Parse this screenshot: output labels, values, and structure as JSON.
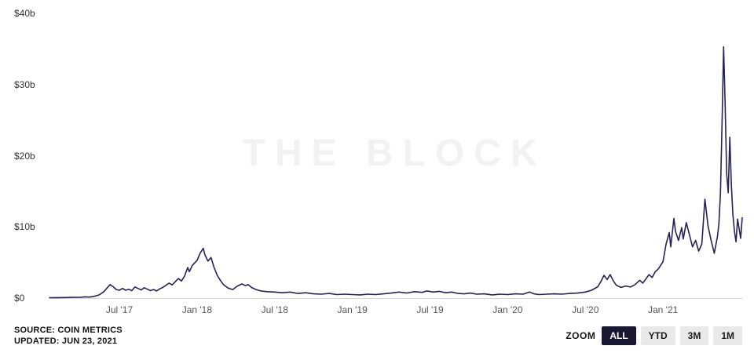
{
  "watermark": "THE BLOCK",
  "colors": {
    "line": "#262254",
    "axis": "#d6d6d6",
    "active_button_bg": "#191731",
    "inactive_button_bg": "#e9e9e9"
  },
  "footer": {
    "source": "SOURCE: COIN METRICS",
    "updated": "UPDATED: JUN 23, 2021",
    "zoom_label": "ZOOM",
    "zoom_options": [
      {
        "label": "ALL",
        "active": true
      },
      {
        "label": "YTD",
        "active": false
      },
      {
        "label": "3M",
        "active": false
      },
      {
        "label": "1M",
        "active": false
      }
    ]
  },
  "chart_data": {
    "type": "line",
    "title": "",
    "xlabel": "",
    "ylabel": "",
    "x_domain": [
      2017.05,
      2021.51
    ],
    "y_domain": [
      0,
      40
    ],
    "grid": false,
    "x_ticks": [
      {
        "value": 2017.5,
        "label": "Jul '17"
      },
      {
        "value": 2018.0,
        "label": "Jan '18"
      },
      {
        "value": 2018.5,
        "label": "Jul '18"
      },
      {
        "value": 2019.0,
        "label": "Jan '19"
      },
      {
        "value": 2019.5,
        "label": "Jul '19"
      },
      {
        "value": 2020.0,
        "label": "Jan '20"
      },
      {
        "value": 2020.5,
        "label": "Jul '20"
      },
      {
        "value": 2021.0,
        "label": "Jan '21"
      }
    ],
    "y_ticks": [
      {
        "value": 0,
        "label": "$0"
      },
      {
        "value": 10,
        "label": "$10b"
      },
      {
        "value": 20,
        "label": "$20b"
      },
      {
        "value": 30,
        "label": "$30b"
      },
      {
        "value": 40,
        "label": "$40b"
      }
    ],
    "series": [
      {
        "name": "value-usd-billions",
        "color": "#262254",
        "points": [
          [
            2017.05,
            0.05
          ],
          [
            2017.1,
            0.07
          ],
          [
            2017.15,
            0.08
          ],
          [
            2017.2,
            0.1
          ],
          [
            2017.25,
            0.12
          ],
          [
            2017.28,
            0.18
          ],
          [
            2017.31,
            0.14
          ],
          [
            2017.34,
            0.25
          ],
          [
            2017.37,
            0.45
          ],
          [
            2017.4,
            0.9
          ],
          [
            2017.42,
            1.4
          ],
          [
            2017.44,
            1.9
          ],
          [
            2017.46,
            1.6
          ],
          [
            2017.48,
            1.2
          ],
          [
            2017.5,
            1.1
          ],
          [
            2017.52,
            1.35
          ],
          [
            2017.54,
            1.1
          ],
          [
            2017.56,
            1.25
          ],
          [
            2017.58,
            1.05
          ],
          [
            2017.6,
            1.55
          ],
          [
            2017.62,
            1.35
          ],
          [
            2017.64,
            1.15
          ],
          [
            2017.66,
            1.45
          ],
          [
            2017.68,
            1.25
          ],
          [
            2017.7,
            1.05
          ],
          [
            2017.72,
            1.2
          ],
          [
            2017.74,
            1.0
          ],
          [
            2017.76,
            1.3
          ],
          [
            2017.78,
            1.5
          ],
          [
            2017.8,
            1.8
          ],
          [
            2017.82,
            2.1
          ],
          [
            2017.84,
            1.85
          ],
          [
            2017.86,
            2.3
          ],
          [
            2017.88,
            2.75
          ],
          [
            2017.9,
            2.4
          ],
          [
            2017.92,
            3.1
          ],
          [
            2017.94,
            4.3
          ],
          [
            2017.95,
            3.7
          ],
          [
            2017.97,
            4.6
          ],
          [
            2018.0,
            5.3
          ],
          [
            2018.02,
            6.3
          ],
          [
            2018.04,
            7.0
          ],
          [
            2018.05,
            6.1
          ],
          [
            2018.07,
            5.2
          ],
          [
            2018.09,
            5.7
          ],
          [
            2018.11,
            4.3
          ],
          [
            2018.13,
            3.2
          ],
          [
            2018.15,
            2.5
          ],
          [
            2018.17,
            1.9
          ],
          [
            2018.2,
            1.4
          ],
          [
            2018.23,
            1.2
          ],
          [
            2018.26,
            1.7
          ],
          [
            2018.29,
            2.0
          ],
          [
            2018.31,
            1.75
          ],
          [
            2018.33,
            1.9
          ],
          [
            2018.35,
            1.5
          ],
          [
            2018.38,
            1.2
          ],
          [
            2018.41,
            1.0
          ],
          [
            2018.45,
            0.9
          ],
          [
            2018.5,
            0.85
          ],
          [
            2018.55,
            0.75
          ],
          [
            2018.6,
            0.85
          ],
          [
            2018.65,
            0.65
          ],
          [
            2018.7,
            0.75
          ],
          [
            2018.75,
            0.6
          ],
          [
            2018.8,
            0.55
          ],
          [
            2018.85,
            0.65
          ],
          [
            2018.9,
            0.5
          ],
          [
            2018.95,
            0.55
          ],
          [
            2019.0,
            0.5
          ],
          [
            2019.05,
            0.45
          ],
          [
            2019.1,
            0.55
          ],
          [
            2019.15,
            0.5
          ],
          [
            2019.2,
            0.6
          ],
          [
            2019.25,
            0.7
          ],
          [
            2019.3,
            0.85
          ],
          [
            2019.35,
            0.7
          ],
          [
            2019.4,
            0.9
          ],
          [
            2019.45,
            0.8
          ],
          [
            2019.48,
            1.0
          ],
          [
            2019.52,
            0.85
          ],
          [
            2019.56,
            0.95
          ],
          [
            2019.6,
            0.75
          ],
          [
            2019.64,
            0.85
          ],
          [
            2019.68,
            0.65
          ],
          [
            2019.72,
            0.6
          ],
          [
            2019.76,
            0.7
          ],
          [
            2019.8,
            0.55
          ],
          [
            2019.85,
            0.6
          ],
          [
            2019.9,
            0.45
          ],
          [
            2019.95,
            0.55
          ],
          [
            2020.0,
            0.5
          ],
          [
            2020.05,
            0.6
          ],
          [
            2020.1,
            0.55
          ],
          [
            2020.14,
            0.85
          ],
          [
            2020.17,
            0.6
          ],
          [
            2020.2,
            0.5
          ],
          [
            2020.25,
            0.55
          ],
          [
            2020.3,
            0.6
          ],
          [
            2020.35,
            0.55
          ],
          [
            2020.4,
            0.65
          ],
          [
            2020.45,
            0.7
          ],
          [
            2020.5,
            0.85
          ],
          [
            2020.54,
            1.1
          ],
          [
            2020.58,
            1.6
          ],
          [
            2020.6,
            2.3
          ],
          [
            2020.62,
            3.2
          ],
          [
            2020.64,
            2.6
          ],
          [
            2020.66,
            3.3
          ],
          [
            2020.68,
            2.4
          ],
          [
            2020.7,
            1.8
          ],
          [
            2020.73,
            1.5
          ],
          [
            2020.76,
            1.7
          ],
          [
            2020.79,
            1.55
          ],
          [
            2020.82,
            1.9
          ],
          [
            2020.85,
            2.5
          ],
          [
            2020.87,
            2.1
          ],
          [
            2020.89,
            2.7
          ],
          [
            2020.91,
            3.3
          ],
          [
            2020.93,
            2.9
          ],
          [
            2020.95,
            3.7
          ],
          [
            2020.97,
            4.1
          ],
          [
            2021.0,
            5.1
          ],
          [
            2021.02,
            7.6
          ],
          [
            2021.04,
            9.2
          ],
          [
            2021.05,
            7.2
          ],
          [
            2021.07,
            11.2
          ],
          [
            2021.08,
            9.4
          ],
          [
            2021.1,
            8.1
          ],
          [
            2021.12,
            9.9
          ],
          [
            2021.13,
            8.3
          ],
          [
            2021.15,
            10.6
          ],
          [
            2021.17,
            8.9
          ],
          [
            2021.19,
            7.2
          ],
          [
            2021.21,
            8.1
          ],
          [
            2021.23,
            6.6
          ],
          [
            2021.25,
            7.6
          ],
          [
            2021.27,
            13.9
          ],
          [
            2021.29,
            10.1
          ],
          [
            2021.31,
            8.1
          ],
          [
            2021.33,
            6.3
          ],
          [
            2021.35,
            8.6
          ],
          [
            2021.36,
            10.4
          ],
          [
            2021.37,
            14.8
          ],
          [
            2021.38,
            24.5
          ],
          [
            2021.39,
            35.3
          ],
          [
            2021.4,
            27.5
          ],
          [
            2021.41,
            17.5
          ],
          [
            2021.42,
            14.8
          ],
          [
            2021.43,
            22.6
          ],
          [
            2021.44,
            15.8
          ],
          [
            2021.45,
            11.8
          ],
          [
            2021.46,
            9.4
          ],
          [
            2021.47,
            7.9
          ],
          [
            2021.48,
            11.1
          ],
          [
            2021.49,
            9.8
          ],
          [
            2021.5,
            8.4
          ],
          [
            2021.51,
            11.3
          ]
        ]
      }
    ]
  }
}
